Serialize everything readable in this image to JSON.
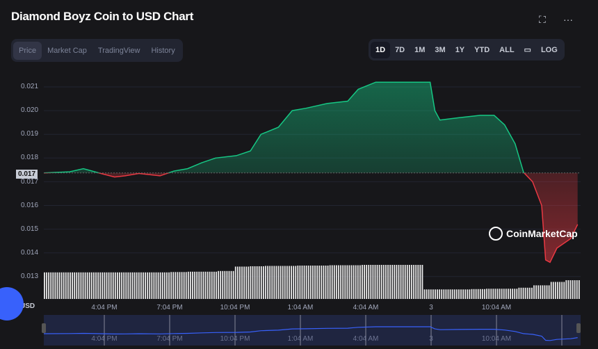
{
  "title": "Diamond Boyz Coin to USD Chart",
  "header_icons": [
    "fullscreen-icon",
    "more-icon"
  ],
  "tabs": [
    {
      "label": "Price",
      "active": true
    },
    {
      "label": "Market Cap"
    },
    {
      "label": "TradingView"
    },
    {
      "label": "History"
    }
  ],
  "ranges": [
    {
      "label": "1D",
      "active": true
    },
    {
      "label": "7D"
    },
    {
      "label": "1M"
    },
    {
      "label": "3M"
    },
    {
      "label": "1Y"
    },
    {
      "label": "YTD"
    },
    {
      "label": "ALL"
    },
    {
      "label": "LOG"
    }
  ],
  "currency": "USD",
  "current_price_label": "0.017",
  "watermark": "CoinMarketCap",
  "colors": {
    "up": "#16c784",
    "down": "#ea3943",
    "volume": "#e6e6e6",
    "navigator": "#3861fb"
  },
  "chart_data": {
    "type": "area",
    "ylabel": "USD",
    "ylim": [
      0.0125,
      0.0213
    ],
    "yticks": [
      "0.021",
      "0.020",
      "0.019",
      "0.018",
      "0.017",
      "0.016",
      "0.015",
      "0.014",
      "0.013"
    ],
    "xticks": [
      "4:04 PM",
      "7:04 PM",
      "10:04 PM",
      "1:04 AM",
      "4:04 AM",
      "3",
      "10:04 AM"
    ],
    "baseline": 0.01737,
    "series": [
      {
        "points": [
          [
            "13:18",
            0.01737
          ],
          [
            "14:29",
            0.01742
          ],
          [
            "15:07",
            0.01755
          ],
          [
            "15:55",
            0.01735
          ],
          [
            "16:33",
            0.0172
          ],
          [
            "17:02",
            0.01725
          ],
          [
            "17:40",
            0.01735
          ],
          [
            "18:38",
            0.01725
          ],
          [
            "19:16",
            0.01745
          ],
          [
            "19:54",
            0.01755
          ],
          [
            "20:33",
            0.0178
          ],
          [
            "21:11",
            0.018
          ],
          [
            "22:08",
            0.0181
          ],
          [
            "22:47",
            0.0183
          ],
          [
            "23:16",
            0.019
          ],
          [
            "00:04",
            0.0193
          ],
          [
            "00:42",
            0.02
          ],
          [
            "01:20",
            0.0201
          ],
          [
            "02:18",
            0.0203
          ],
          [
            "03:15",
            0.0204
          ],
          [
            "03:44",
            0.0209
          ],
          [
            "04:32",
            0.0212
          ],
          [
            "05:49",
            0.0212
          ],
          [
            "06:27",
            0.0212
          ],
          [
            "07:02",
            0.0212
          ],
          [
            "07:15",
            0.02
          ],
          [
            "07:29",
            0.0196
          ],
          [
            "08:22",
            0.0197
          ],
          [
            "09:20",
            0.0198
          ],
          [
            "09:58",
            0.0198
          ],
          [
            "10:27",
            0.0194
          ],
          [
            "10:56",
            0.0186
          ],
          [
            "11:19",
            0.0174
          ],
          [
            "11:44",
            0.017
          ],
          [
            "12:09",
            0.016
          ],
          [
            "12:20",
            0.0137
          ],
          [
            "12:32",
            0.0136
          ],
          [
            "12:51",
            0.0142
          ],
          [
            "13:29",
            0.0146
          ],
          [
            "13:48",
            0.0152
          ]
        ]
      }
    ],
    "volume_relative": [
      0.78,
      0.78,
      0.78,
      0.78,
      0.78,
      0.78,
      0.78,
      0.78,
      0.79,
      0.8,
      0.8,
      0.82,
      0.95,
      0.96,
      0.97,
      0.97,
      0.98,
      0.98,
      0.99,
      0.99,
      1,
      1,
      1,
      1,
      0.28,
      0.28,
      0.28,
      0.29,
      0.3,
      0.3,
      0.33,
      0.4,
      0.5,
      0.55
    ]
  }
}
